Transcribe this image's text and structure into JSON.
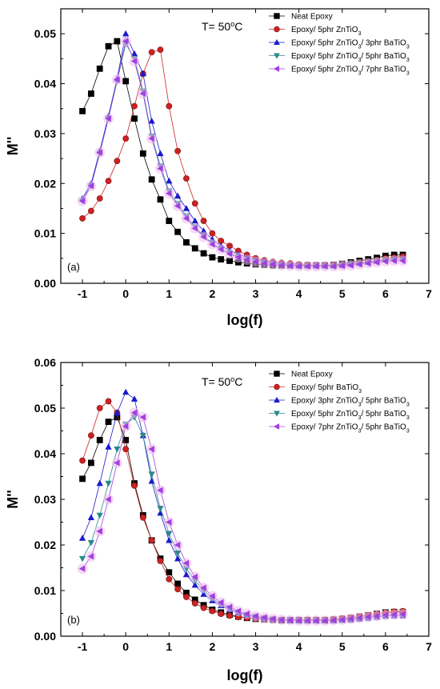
{
  "chart_data": [
    {
      "type": "line",
      "panel_label": "(a)",
      "annotation": "T= 50°C",
      "xlabel": "log(f)",
      "ylabel": "M''",
      "xlim": [
        -1.5,
        7
      ],
      "ylim": [
        0,
        0.055
      ],
      "xticks": [
        "-1",
        "0",
        "1",
        "2",
        "3",
        "4",
        "5",
        "6",
        "7"
      ],
      "yticks": [
        "0.00",
        "0.01",
        "0.02",
        "0.03",
        "0.04",
        "0.05"
      ],
      "legend_position": "top-right",
      "series": [
        {
          "name": "Neat Epoxy",
          "color": "#000000",
          "marker": "square",
          "x": [
            -1.0,
            -0.8,
            -0.6,
            -0.4,
            -0.2,
            0.0,
            0.2,
            0.4,
            0.6,
            0.8,
            1.0,
            1.2,
            1.4,
            1.6,
            1.8,
            2.0,
            2.2,
            2.4,
            2.6,
            2.8,
            3.0,
            3.2,
            3.4,
            3.6,
            3.8,
            4.0,
            4.2,
            4.4,
            4.6,
            4.8,
            5.0,
            5.2,
            5.4,
            5.6,
            5.8,
            6.0,
            6.2,
            6.4
          ],
          "y": [
            0.0345,
            0.038,
            0.043,
            0.0475,
            0.0485,
            0.0405,
            0.033,
            0.026,
            0.0208,
            0.0168,
            0.0125,
            0.0103,
            0.0082,
            0.007,
            0.006,
            0.0052,
            0.0048,
            0.0045,
            0.0042,
            0.004,
            0.0038,
            0.0037,
            0.0036,
            0.0036,
            0.0036,
            0.0036,
            0.0036,
            0.0036,
            0.0036,
            0.0037,
            0.0039,
            0.0042,
            0.0045,
            0.0048,
            0.0051,
            0.0055,
            0.0057,
            0.0057
          ]
        },
        {
          "name": "Epoxy/ 5phr ZnTiO3",
          "color": "#cc2222",
          "marker": "circle",
          "x": [
            -1.0,
            -0.8,
            -0.6,
            -0.4,
            -0.2,
            0.0,
            0.2,
            0.4,
            0.6,
            0.8,
            1.0,
            1.2,
            1.4,
            1.6,
            1.8,
            2.0,
            2.2,
            2.4,
            2.6,
            2.8,
            3.0,
            3.2,
            3.4,
            3.6,
            3.8,
            4.0,
            4.2,
            4.4,
            4.6,
            4.8,
            5.0,
            5.2,
            5.4,
            5.6,
            5.8,
            6.0,
            6.2,
            6.4
          ],
          "y": [
            0.013,
            0.0145,
            0.017,
            0.0205,
            0.0245,
            0.029,
            0.0355,
            0.042,
            0.0463,
            0.0468,
            0.0355,
            0.0265,
            0.021,
            0.016,
            0.0125,
            0.01,
            0.0085,
            0.0075,
            0.0065,
            0.0057,
            0.005,
            0.0046,
            0.0043,
            0.0041,
            0.004,
            0.0038,
            0.0037,
            0.0036,
            0.0036,
            0.0036,
            0.0037,
            0.0039,
            0.0041,
            0.0043,
            0.0046,
            0.005,
            0.0052,
            0.0054
          ]
        },
        {
          "name": "Epoxy/ 5phr ZnTiO3/ 3phr BaTiO3",
          "color": "#1a1acc",
          "marker": "triangle-up",
          "x": [
            -1.0,
            -0.8,
            -0.6,
            -0.4,
            -0.2,
            0.0,
            0.2,
            0.4,
            0.6,
            0.8,
            1.0,
            1.2,
            1.4,
            1.6,
            1.8,
            2.0,
            2.2,
            2.4,
            2.6,
            2.8,
            3.0,
            3.2,
            3.4,
            3.6,
            3.8,
            4.0,
            4.2,
            4.4,
            4.6,
            4.8,
            5.0,
            5.2,
            5.4,
            5.6,
            5.8,
            6.0,
            6.2,
            6.4
          ],
          "y": [
            0.017,
            0.02,
            0.0265,
            0.0335,
            0.041,
            0.05,
            0.046,
            0.042,
            0.0325,
            0.026,
            0.0205,
            0.0175,
            0.015,
            0.0125,
            0.0105,
            0.0088,
            0.0075,
            0.0066,
            0.0058,
            0.0052,
            0.0047,
            0.0044,
            0.0041,
            0.0039,
            0.0037,
            0.0036,
            0.0035,
            0.0035,
            0.0035,
            0.0035,
            0.0036,
            0.0038,
            0.004,
            0.0042,
            0.0044,
            0.0047,
            0.0049,
            0.005
          ]
        },
        {
          "name": "Epoxy/ 5phr ZnTiO3/ 5phr BaTiO3",
          "color": "#2a8a8a",
          "marker": "triangle-down",
          "x": [
            -1.0,
            -0.8,
            -0.6,
            -0.4,
            -0.2,
            0.0,
            0.2,
            0.4,
            0.6,
            0.8,
            1.0,
            1.2,
            1.4,
            1.6,
            1.8,
            2.0,
            2.2,
            2.4,
            2.6,
            2.8,
            3.0,
            3.2,
            3.4,
            3.6,
            3.8,
            4.0,
            4.2,
            4.4,
            4.6,
            4.8,
            5.0,
            5.2,
            5.4,
            5.6,
            5.8,
            6.0,
            6.2,
            6.4
          ],
          "y": [
            0.0165,
            0.0195,
            0.026,
            0.033,
            0.0405,
            0.048,
            0.045,
            0.0385,
            0.0295,
            0.0235,
            0.0185,
            0.016,
            0.0135,
            0.0113,
            0.0095,
            0.008,
            0.0069,
            0.006,
            0.0053,
            0.0047,
            0.0043,
            0.004,
            0.0038,
            0.0036,
            0.0035,
            0.0034,
            0.0034,
            0.0034,
            0.0034,
            0.0034,
            0.0035,
            0.0037,
            0.0039,
            0.0041,
            0.0043,
            0.0045,
            0.0046,
            0.0046
          ]
        },
        {
          "name": "Epoxy/ 5phr ZnTiO3/ 7phr BaTiO3",
          "color": "#a040e0",
          "marker": "triangle-left",
          "x": [
            -1.0,
            -0.8,
            -0.6,
            -0.4,
            -0.2,
            0.0,
            0.2,
            0.4,
            0.6,
            0.8,
            1.0,
            1.2,
            1.4,
            1.6,
            1.8,
            2.0,
            2.2,
            2.4,
            2.6,
            2.8,
            3.0,
            3.2,
            3.4,
            3.6,
            3.8,
            4.0,
            4.2,
            4.4,
            4.6,
            4.8,
            5.0,
            5.2,
            5.4,
            5.6,
            5.8,
            6.0,
            6.2,
            6.4
          ],
          "y": [
            0.0165,
            0.0195,
            0.0262,
            0.033,
            0.0408,
            0.0485,
            0.0445,
            0.038,
            0.029,
            0.023,
            0.018,
            0.0155,
            0.013,
            0.011,
            0.0093,
            0.0078,
            0.0068,
            0.0059,
            0.0052,
            0.0047,
            0.0043,
            0.004,
            0.0038,
            0.0036,
            0.0035,
            0.0034,
            0.0034,
            0.0034,
            0.0034,
            0.0034,
            0.0035,
            0.0036,
            0.0038,
            0.004,
            0.0042,
            0.0044,
            0.0045,
            0.0045
          ]
        }
      ]
    },
    {
      "type": "line",
      "panel_label": "(b)",
      "annotation": "T= 50°C",
      "xlabel": "log(f)",
      "ylabel": "M''",
      "xlim": [
        -1.5,
        7
      ],
      "ylim": [
        0,
        0.06
      ],
      "xticks": [
        "-1",
        "0",
        "1",
        "2",
        "3",
        "4",
        "5",
        "6",
        "7"
      ],
      "yticks": [
        "0.00",
        "0.01",
        "0.02",
        "0.03",
        "0.04",
        "0.05",
        "0.06"
      ],
      "legend_position": "top-right",
      "series": [
        {
          "name": "Neat Epoxy",
          "color": "#000000",
          "marker": "square",
          "x": [
            -1.0,
            -0.8,
            -0.6,
            -0.4,
            -0.2,
            0.0,
            0.2,
            0.4,
            0.6,
            0.8,
            1.0,
            1.2,
            1.4,
            1.6,
            1.8,
            2.0,
            2.2,
            2.4,
            2.6,
            2.8,
            3.0,
            3.2,
            3.4,
            3.6,
            3.8,
            4.0,
            4.2,
            4.4,
            4.6,
            4.8,
            5.0,
            5.2,
            5.4,
            5.6,
            5.8,
            6.0,
            6.2,
            6.4
          ],
          "y": [
            0.0345,
            0.038,
            0.043,
            0.047,
            0.048,
            0.043,
            0.0335,
            0.0265,
            0.021,
            0.017,
            0.014,
            0.0115,
            0.0095,
            0.008,
            0.0068,
            0.0058,
            0.0052,
            0.0047,
            0.0043,
            0.004,
            0.0038,
            0.0037,
            0.0036,
            0.0035,
            0.0035,
            0.0035,
            0.0035,
            0.0035,
            0.0035,
            0.0036,
            0.0038,
            0.004,
            0.0043,
            0.0046,
            0.0049,
            0.0052,
            0.0053,
            0.0053
          ]
        },
        {
          "name": "Epoxy/ 5phr BaTiO3",
          "color": "#cc2222",
          "marker": "circle",
          "x": [
            -1.0,
            -0.8,
            -0.6,
            -0.4,
            -0.2,
            0.0,
            0.2,
            0.4,
            0.6,
            0.8,
            1.0,
            1.2,
            1.4,
            1.6,
            1.8,
            2.0,
            2.2,
            2.4,
            2.6,
            2.8,
            3.0,
            3.2,
            3.4,
            3.6,
            3.8,
            4.0,
            4.2,
            4.4,
            4.6,
            4.8,
            5.0,
            5.2,
            5.4,
            5.6,
            5.8,
            6.0,
            6.2,
            6.4
          ],
          "y": [
            0.0385,
            0.044,
            0.05,
            0.0515,
            0.049,
            0.041,
            0.033,
            0.026,
            0.021,
            0.0165,
            0.0125,
            0.0103,
            0.0086,
            0.0072,
            0.0062,
            0.0055,
            0.0049,
            0.0045,
            0.0042,
            0.004,
            0.0038,
            0.0037,
            0.0036,
            0.0036,
            0.0036,
            0.0036,
            0.0036,
            0.0036,
            0.0036,
            0.0037,
            0.0039,
            0.0041,
            0.0043,
            0.0046,
            0.0049,
            0.0052,
            0.0054,
            0.0055
          ]
        },
        {
          "name": "Epoxy/ 3phr ZnTiO3/ 5phr BaTiO3",
          "color": "#1a1acc",
          "marker": "triangle-up",
          "x": [
            -1.0,
            -0.8,
            -0.6,
            -0.4,
            -0.2,
            0.0,
            0.2,
            0.4,
            0.6,
            0.8,
            1.0,
            1.2,
            1.4,
            1.6,
            1.8,
            2.0,
            2.2,
            2.4,
            2.6,
            2.8,
            3.0,
            3.2,
            3.4,
            3.6,
            3.8,
            4.0,
            4.2,
            4.4,
            4.6,
            4.8,
            5.0,
            5.2,
            5.4,
            5.6,
            5.8,
            6.0,
            6.2,
            6.4
          ],
          "y": [
            0.0215,
            0.026,
            0.0335,
            0.0415,
            0.049,
            0.0535,
            0.052,
            0.044,
            0.034,
            0.027,
            0.021,
            0.017,
            0.0135,
            0.0112,
            0.0092,
            0.0078,
            0.0067,
            0.0058,
            0.0051,
            0.0046,
            0.0042,
            0.0039,
            0.0037,
            0.0036,
            0.0035,
            0.0034,
            0.0034,
            0.0034,
            0.0034,
            0.0034,
            0.0035,
            0.0036,
            0.0038,
            0.004,
            0.0042,
            0.0044,
            0.0045,
            0.0045
          ]
        },
        {
          "name": "Epoxy/ 5phr ZnTiO3/ 5phr BaTiO3",
          "color": "#2a8a8a",
          "marker": "triangle-down",
          "x": [
            -1.0,
            -0.8,
            -0.6,
            -0.4,
            -0.2,
            0.0,
            0.2,
            0.4,
            0.6,
            0.8,
            1.0,
            1.2,
            1.4,
            1.6,
            1.8,
            2.0,
            2.2,
            2.4,
            2.6,
            2.8,
            3.0,
            3.2,
            3.4,
            3.6,
            3.8,
            4.0,
            4.2,
            4.4,
            4.6,
            4.8,
            5.0,
            5.2,
            5.4,
            5.6,
            5.8,
            6.0,
            6.2,
            6.4
          ],
          "y": [
            0.017,
            0.0205,
            0.0265,
            0.0335,
            0.041,
            0.0465,
            0.048,
            0.044,
            0.0355,
            0.028,
            0.0225,
            0.0182,
            0.0148,
            0.0122,
            0.01,
            0.0083,
            0.007,
            0.0061,
            0.0053,
            0.0047,
            0.0043,
            0.004,
            0.0037,
            0.0036,
            0.0035,
            0.0034,
            0.0034,
            0.0034,
            0.0034,
            0.0034,
            0.0035,
            0.0036,
            0.0038,
            0.004,
            0.0042,
            0.0044,
            0.0045,
            0.0045
          ]
        },
        {
          "name": "Epoxy/ 7phr ZnTiO3/ 5phr BaTiO3",
          "color": "#a040e0",
          "marker": "triangle-left",
          "x": [
            -1.0,
            -0.8,
            -0.6,
            -0.4,
            -0.2,
            0.0,
            0.2,
            0.4,
            0.6,
            0.8,
            1.0,
            1.2,
            1.4,
            1.6,
            1.8,
            2.0,
            2.2,
            2.4,
            2.6,
            2.8,
            3.0,
            3.2,
            3.4,
            3.6,
            3.8,
            4.0,
            4.2,
            4.4,
            4.6,
            4.8,
            5.0,
            5.2,
            5.4,
            5.6,
            5.8,
            6.0,
            6.2,
            6.4
          ],
          "y": [
            0.0148,
            0.0175,
            0.023,
            0.03,
            0.038,
            0.046,
            0.049,
            0.048,
            0.041,
            0.032,
            0.025,
            0.02,
            0.016,
            0.013,
            0.0106,
            0.0088,
            0.0074,
            0.0064,
            0.0055,
            0.0049,
            0.0044,
            0.0041,
            0.0038,
            0.0036,
            0.0035,
            0.0034,
            0.0034,
            0.0034,
            0.0034,
            0.0035,
            0.0036,
            0.0038,
            0.004,
            0.0042,
            0.0044,
            0.0046,
            0.0047,
            0.0048
          ]
        }
      ]
    }
  ]
}
